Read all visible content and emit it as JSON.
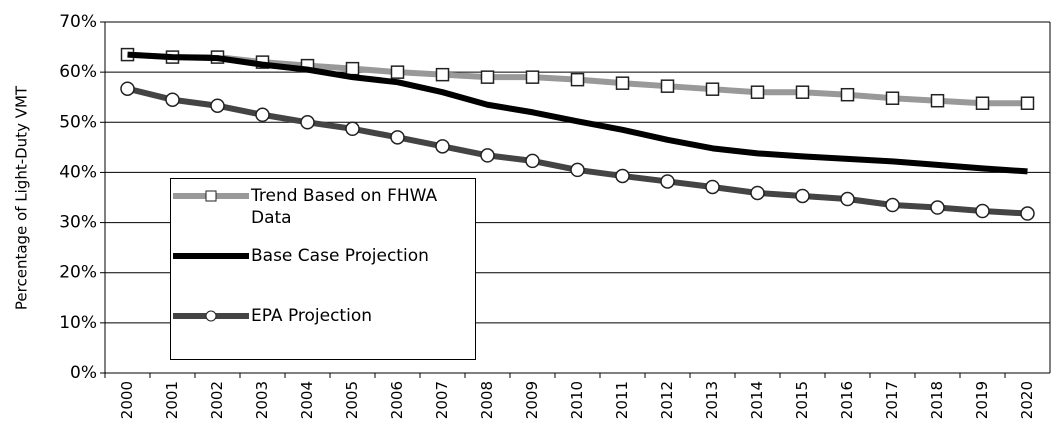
{
  "chart_data": {
    "type": "line",
    "y_label": "Percentage of Light-Duty VMT",
    "categories": [
      "2000",
      "2001",
      "2002",
      "2003",
      "2004",
      "2005",
      "2006",
      "2007",
      "2008",
      "2009",
      "2010",
      "2011",
      "2012",
      "2013",
      "2014",
      "2015",
      "2016",
      "2017",
      "2018",
      "2019",
      "2020"
    ],
    "series": [
      {
        "name": "Trend Based on FHWA Data",
        "color": "#999999",
        "marker": "square",
        "values": [
          63.5,
          63,
          63,
          62,
          61.3,
          60.7,
          60,
          59.5,
          59,
          59,
          58.5,
          57.8,
          57.2,
          56.6,
          56,
          56,
          55.5,
          54.8,
          54.3,
          53.8,
          53.8
        ]
      },
      {
        "name": "Base Case Projection",
        "color": "#000000",
        "marker": null,
        "values": [
          63.5,
          63,
          62.8,
          61.5,
          60.5,
          59,
          58,
          56,
          53.5,
          52,
          50.2,
          48.5,
          46.5,
          44.8,
          43.8,
          43.2,
          42.7,
          42.2,
          41.5,
          40.8,
          40.2
        ]
      },
      {
        "name": "EPA Projection",
        "color": "#444444",
        "marker": "circle",
        "values": [
          56.7,
          54.5,
          53.3,
          51.5,
          50,
          48.7,
          47,
          45.2,
          43.4,
          42.3,
          40.5,
          39.3,
          38.2,
          37.1,
          35.9,
          35.3,
          34.7,
          33.5,
          33,
          32.3,
          31.8
        ]
      }
    ],
    "ylim": [
      0,
      70
    ],
    "yticks": [
      {
        "value": 0,
        "label": "0%"
      },
      {
        "value": 10,
        "label": "10%"
      },
      {
        "value": 20,
        "label": "20%"
      },
      {
        "value": 30,
        "label": "30%"
      },
      {
        "value": 40,
        "label": "40%"
      },
      {
        "value": 50,
        "label": "50%"
      },
      {
        "value": 60,
        "label": "60%"
      },
      {
        "value": 70,
        "label": "70%"
      }
    ],
    "grid": true,
    "legend": "lower left"
  }
}
